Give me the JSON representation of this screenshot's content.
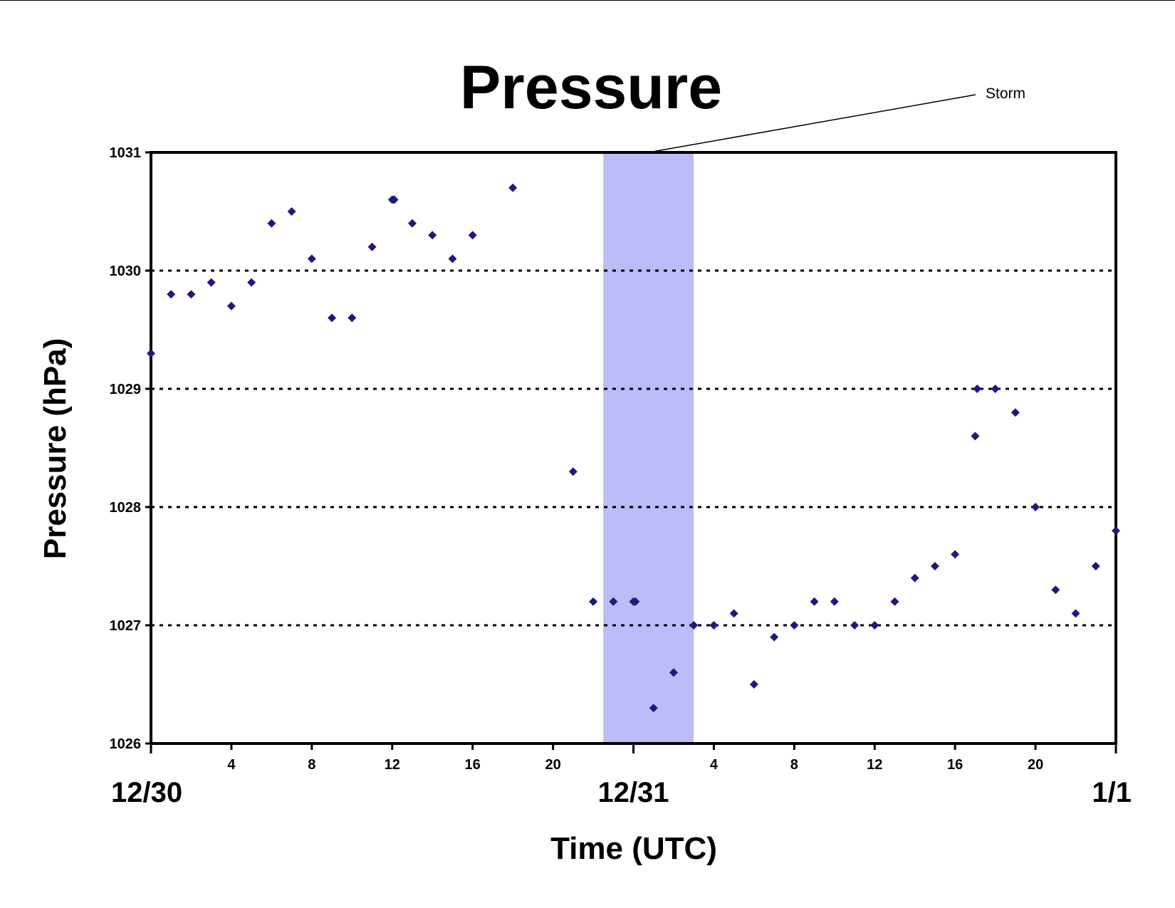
{
  "chart_data": {
    "type": "scatter",
    "title": "Pressure",
    "xlabel": "Time (UTC)",
    "ylabel": "Pressure (hPa)",
    "ylim": [
      1026,
      1031
    ],
    "y_ticks": [
      1026,
      1027,
      1028,
      1029,
      1030,
      1031
    ],
    "y_tick_labels": [
      "1026",
      "1027",
      "1028",
      "1029",
      "1030",
      "1031"
    ],
    "xlim": [
      "12/30 00:00",
      "1/1 00:00"
    ],
    "x_ticks_hours": [
      4,
      8,
      12,
      16,
      20,
      28,
      32,
      36,
      40,
      44
    ],
    "x_tick_labels": [
      "4",
      "8",
      "12",
      "16",
      "20",
      "4",
      "8",
      "12",
      "16",
      "20"
    ],
    "date_labels": [
      {
        "hour": 0,
        "label": "12/30"
      },
      {
        "hour": 24,
        "label": "12/31"
      },
      {
        "hour": 48,
        "label": "1/1"
      }
    ],
    "gridlines": "horizontal dotted",
    "marker_color": "#1a1a80",
    "shading": {
      "start_hour": 22.5,
      "end_hour": 27,
      "color": "#bcbcf8",
      "label": "Storm"
    },
    "series": [
      {
        "x_hours": [
          0,
          1,
          2,
          3,
          4,
          5,
          6,
          7,
          8,
          9,
          10,
          11,
          12,
          12.1,
          13,
          14,
          15,
          16,
          18,
          21,
          22,
          23,
          24,
          24.1,
          25,
          26,
          27,
          28,
          29,
          30,
          31,
          32,
          33,
          34,
          35,
          36,
          37,
          38,
          39,
          40,
          41,
          41.1,
          42,
          43,
          44,
          45,
          46,
          47,
          48
        ],
        "values": [
          1029.3,
          1029.8,
          1029.8,
          1029.9,
          1029.7,
          1029.9,
          1030.4,
          1030.5,
          1030.1,
          1029.6,
          1029.6,
          1030.2,
          1030.6,
          1030.6,
          1030.4,
          1030.3,
          1030.1,
          1030.3,
          1030.7,
          1028.3,
          1027.2,
          1027.2,
          1027.2,
          1027.2,
          1026.3,
          1026.6,
          1027.0,
          1027.0,
          1027.1,
          1026.5,
          1026.9,
          1027.0,
          1027.2,
          1027.2,
          1027.0,
          1027.0,
          1027.2,
          1027.4,
          1027.5,
          1027.6,
          1028.6,
          1029.0,
          1029.0,
          1028.8,
          1028.0,
          1027.3,
          1027.1,
          1027.5,
          1027.8
        ]
      }
    ]
  }
}
